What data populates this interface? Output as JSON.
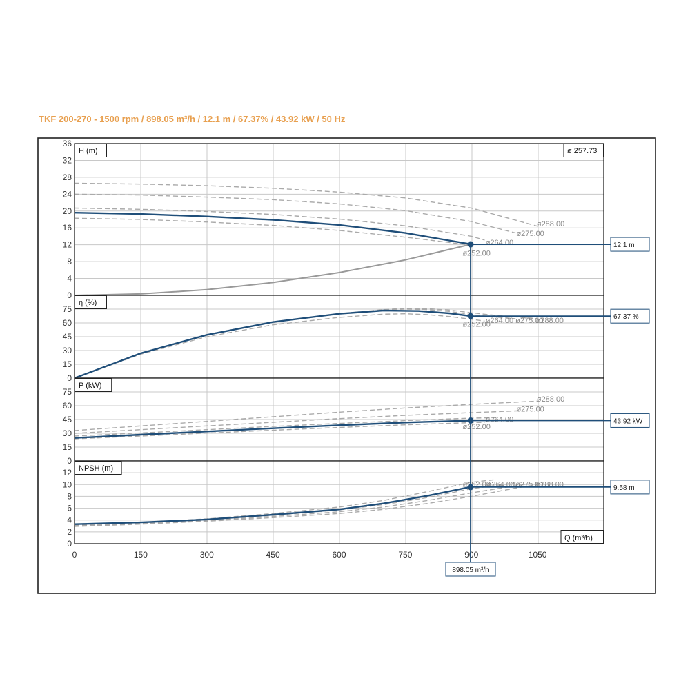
{
  "title": "TKF 200-270 - 1500 rpm / 898.05 m³/h / 12.1 m / 67.37% / 43.92 kW / 50 Hz",
  "colors": {
    "title": "#e8a050",
    "curve": "#1f4e79",
    "alt": "#aaaaaa",
    "system": "#999999",
    "frame": "#222222",
    "grid": "#c8c8c8"
  },
  "duty_point": {
    "label": "898.05 m³/h",
    "q": 898.05
  },
  "chart_data": [
    {
      "type": "line",
      "id": "head",
      "ylabel": "H (m)",
      "ylim": [
        0,
        36
      ],
      "yticks": [
        0,
        4,
        8,
        12,
        16,
        20,
        24,
        28,
        32,
        36
      ],
      "badge": "ø 257.73",
      "duty_value": 12.1,
      "duty_label": "12.1 m",
      "series": [
        {
          "style": "main",
          "x": [
            0,
            150,
            300,
            450,
            600,
            750,
            900
          ],
          "y": [
            19.6,
            19.3,
            18.7,
            17.9,
            16.7,
            14.8,
            12.1
          ]
        },
        {
          "style": "alt",
          "x": [
            0,
            150,
            300,
            450,
            600,
            750,
            900
          ],
          "y": [
            18.3,
            18.0,
            17.4,
            16.6,
            15.4,
            13.8,
            11.9
          ]
        },
        {
          "style": "alt",
          "x": [
            0,
            150,
            300,
            450,
            600,
            750,
            900,
            930
          ],
          "y": [
            20.7,
            20.4,
            19.9,
            19.2,
            18.1,
            16.5,
            14.0,
            13.1
          ]
        },
        {
          "style": "alt",
          "x": [
            0,
            150,
            300,
            450,
            600,
            750,
            900,
            1000
          ],
          "y": [
            24.0,
            23.8,
            23.3,
            22.7,
            21.7,
            20.1,
            17.5,
            14.8
          ]
        },
        {
          "style": "alt",
          "x": [
            0,
            150,
            300,
            450,
            600,
            750,
            900,
            1050
          ],
          "y": [
            26.6,
            26.4,
            26.0,
            25.4,
            24.5,
            23.1,
            20.7,
            16.4
          ]
        },
        {
          "style": "system",
          "x": [
            0,
            150,
            300,
            450,
            600,
            750,
            898
          ],
          "y": [
            0,
            0.34,
            1.35,
            3.04,
            5.4,
            8.4,
            12.1
          ]
        }
      ],
      "annotations": [
        {
          "text": "ø252.00",
          "x": 880,
          "y": 10.1
        },
        {
          "text": "ø264.00",
          "x": 932,
          "y": 12.6
        },
        {
          "text": "ø275.00",
          "x": 1002,
          "y": 14.7
        },
        {
          "text": "ø288.00",
          "x": 1048,
          "y": 17.0
        }
      ]
    },
    {
      "type": "line",
      "id": "efficiency",
      "ylabel": "η (%)",
      "ylim": [
        0,
        90
      ],
      "yticks": [
        0,
        15,
        30,
        45,
        60,
        75
      ],
      "duty_value": 67.37,
      "duty_label": "67.37 %",
      "series": [
        {
          "style": "main",
          "x": [
            0,
            150,
            300,
            450,
            600,
            700,
            780,
            850,
            898
          ],
          "y": [
            0,
            27,
            47,
            61,
            70,
            73.5,
            73,
            70.5,
            67.4
          ]
        },
        {
          "style": "alt",
          "x": [
            0,
            150,
            300,
            450,
            600,
            700,
            750,
            800,
            850,
            900,
            930
          ],
          "y": [
            0,
            26,
            45,
            58,
            66,
            69.5,
            70,
            69,
            67,
            64,
            62
          ]
        },
        {
          "style": "alt",
          "x": [
            0,
            150,
            300,
            450,
            600,
            700,
            750,
            800,
            850,
            900,
            950,
            1000
          ],
          "y": [
            0,
            27,
            47,
            61,
            70,
            74,
            75,
            74.5,
            72.5,
            69,
            66.5,
            64.5
          ]
        },
        {
          "style": "alt",
          "x": [
            0,
            150,
            300,
            450,
            600,
            700,
            750,
            800,
            850,
            900,
            950,
            1000,
            1050
          ],
          "y": [
            0,
            27,
            47,
            61,
            70,
            74.5,
            76,
            75.5,
            74,
            71,
            68.5,
            66.5,
            64.5
          ]
        }
      ],
      "annotations": [
        {
          "text": "ø252.00",
          "x": 880,
          "y": 59
        },
        {
          "text": "ø264.00",
          "x": 932,
          "y": 63
        },
        {
          "text": "ø275.00",
          "x": 1000,
          "y": 63
        },
        {
          "text": "ø288.00",
          "x": 1046,
          "y": 63
        }
      ]
    },
    {
      "type": "line",
      "id": "power",
      "ylabel": "P (kW)",
      "ylim": [
        0,
        90
      ],
      "yticks": [
        0,
        15,
        30,
        45,
        60,
        75
      ],
      "duty_value": 43.92,
      "duty_label": "43.92 kW",
      "series": [
        {
          "style": "main",
          "x": [
            0,
            150,
            300,
            450,
            600,
            750,
            898
          ],
          "y": [
            25,
            28.5,
            32,
            35.5,
            38.8,
            41.8,
            43.9
          ]
        },
        {
          "style": "alt",
          "x": [
            0,
            150,
            300,
            450,
            600,
            750,
            900,
            930
          ],
          "y": [
            24,
            27,
            30.2,
            33.4,
            36.4,
            39.2,
            41.6,
            42
          ]
        },
        {
          "style": "alt",
          "x": [
            0,
            150,
            300,
            450,
            600,
            750,
            900,
            960
          ],
          "y": [
            27,
            30.4,
            34,
            37.5,
            40.8,
            43.8,
            46.5,
            47
          ]
        },
        {
          "style": "alt",
          "x": [
            0,
            150,
            300,
            450,
            600,
            750,
            900,
            1010
          ],
          "y": [
            30,
            34,
            38,
            42,
            46,
            49.5,
            52.5,
            54.5
          ]
        },
        {
          "style": "alt",
          "x": [
            0,
            150,
            300,
            450,
            600,
            750,
            900,
            1050
          ],
          "y": [
            33,
            38,
            43,
            48,
            53,
            57.5,
            61.5,
            65
          ]
        }
      ],
      "annotations": [
        {
          "text": "ø252.00",
          "x": 880,
          "y": 37.5
        },
        {
          "text": "ø264.00",
          "x": 932,
          "y": 45.5
        },
        {
          "text": "ø275.00",
          "x": 1002,
          "y": 56.5
        },
        {
          "text": "ø288.00",
          "x": 1048,
          "y": 67.5
        }
      ]
    },
    {
      "type": "line",
      "id": "npsh",
      "ylabel": "NPSH (m)",
      "xlabel": "Q (m³/h)",
      "ylim": [
        0,
        14
      ],
      "yticks": [
        0,
        2,
        4,
        6,
        8,
        10,
        12
      ],
      "xticks": [
        0,
        150,
        300,
        450,
        600,
        750,
        900,
        1050
      ],
      "xlim": [
        0,
        1200
      ],
      "duty_value": 9.58,
      "duty_label": "9.58 m",
      "series": [
        {
          "style": "main",
          "x": [
            0,
            150,
            300,
            450,
            600,
            700,
            800,
            898
          ],
          "y": [
            3.3,
            3.6,
            4.1,
            4.9,
            5.8,
            6.8,
            8.1,
            9.6
          ]
        },
        {
          "style": "alt",
          "x": [
            0,
            150,
            300,
            450,
            600,
            700,
            800,
            900,
            950
          ],
          "y": [
            3.2,
            3.6,
            4.2,
            5.1,
            6.2,
            7.3,
            8.8,
            10.4,
            10.8
          ]
        },
        {
          "style": "alt",
          "x": [
            0,
            150,
            300,
            450,
            600,
            700,
            800,
            900,
            1000
          ],
          "y": [
            3.1,
            3.5,
            4.0,
            4.8,
            5.7,
            6.6,
            7.8,
            9.3,
            10.3
          ]
        },
        {
          "style": "alt",
          "x": [
            0,
            150,
            300,
            450,
            600,
            700,
            800,
            900,
            1000,
            1050
          ],
          "y": [
            3.0,
            3.4,
            3.9,
            4.6,
            5.4,
            6.2,
            7.3,
            8.6,
            9.8,
            10.3
          ]
        },
        {
          "style": "alt",
          "x": [
            0,
            150,
            300,
            450,
            600,
            700,
            800,
            900,
            1000,
            1050
          ],
          "y": [
            2.9,
            3.3,
            3.8,
            4.4,
            5.1,
            5.8,
            6.8,
            8.0,
            9.4,
            10.0
          ]
        }
      ],
      "annotations": [
        {
          "text": "ø252.00",
          "x": 880,
          "y": 10.1
        },
        {
          "text": "ø264.00",
          "x": 935,
          "y": 10.1
        },
        {
          "text": "ø275.00",
          "x": 1000,
          "y": 10.1
        },
        {
          "text": "ø288.00",
          "x": 1046,
          "y": 10.1
        }
      ]
    }
  ]
}
